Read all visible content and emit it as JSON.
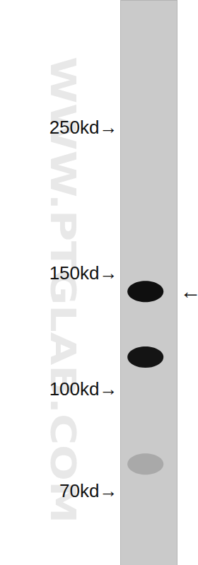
{
  "chart_data": {
    "type": "western_blot",
    "log": "y",
    "ylim": [
      54,
      391
    ],
    "yticks": [
      {
        "value": 250,
        "label": "250kd→"
      },
      {
        "value": 150,
        "label": "150kd→"
      },
      {
        "value": 100,
        "label": "100kd→"
      },
      {
        "value": 70,
        "label": "70kd→"
      }
    ],
    "tick_labels": "y",
    "grid": false,
    "values": [
      141,
      112,
      77
    ],
    "colors": [
      "#0f0f0f",
      "#141414",
      "#a9a9a9"
    ],
    "annotations": [
      {
        "text": "←",
        "value": 141
      }
    ],
    "watermark": "WWW.PTGLAB.COM"
  }
}
